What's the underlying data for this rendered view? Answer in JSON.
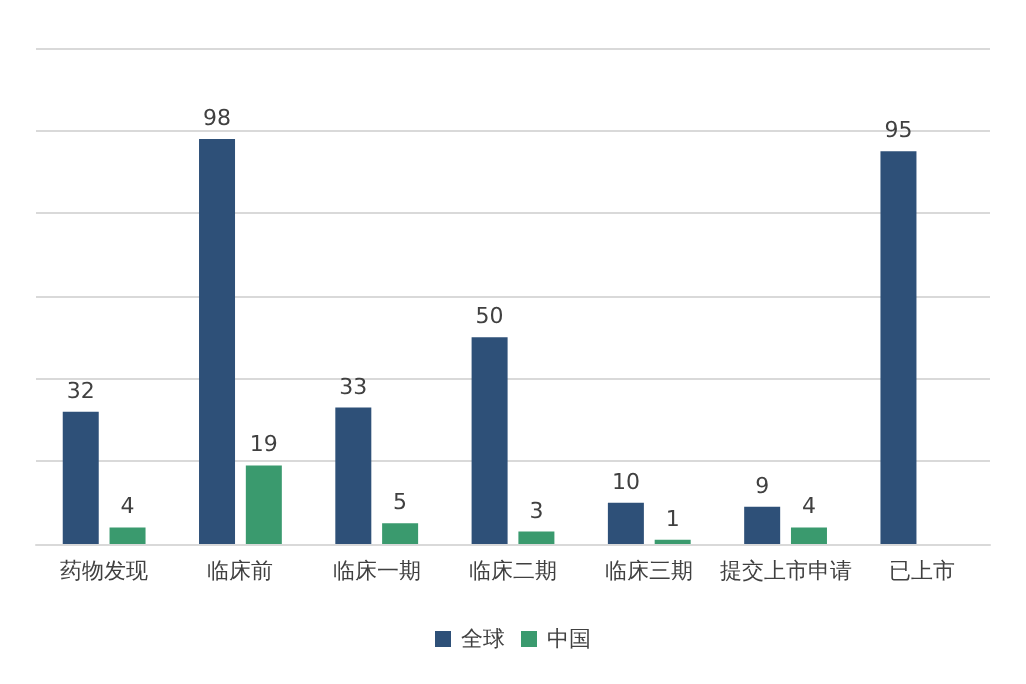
{
  "chart_data": {
    "type": "bar",
    "categories": [
      "药物发现",
      "临床前",
      "临床一期",
      "临床二期",
      "临床三期",
      "提交上市申请",
      "已上市"
    ],
    "series": [
      {
        "name": "全球",
        "color": "#2e5078",
        "values": [
          32,
          98,
          33,
          50,
          10,
          9,
          95
        ]
      },
      {
        "name": "中国",
        "color": "#3a9a6e",
        "values": [
          4,
          19,
          5,
          3,
          1,
          4,
          null
        ]
      }
    ],
    "ylim": [
      0,
      120
    ],
    "yticks": [
      0,
      20,
      40,
      60,
      80,
      100,
      120
    ],
    "tick_labels": "x",
    "grid": "y",
    "legend": "bottom",
    "data_labels": true
  }
}
